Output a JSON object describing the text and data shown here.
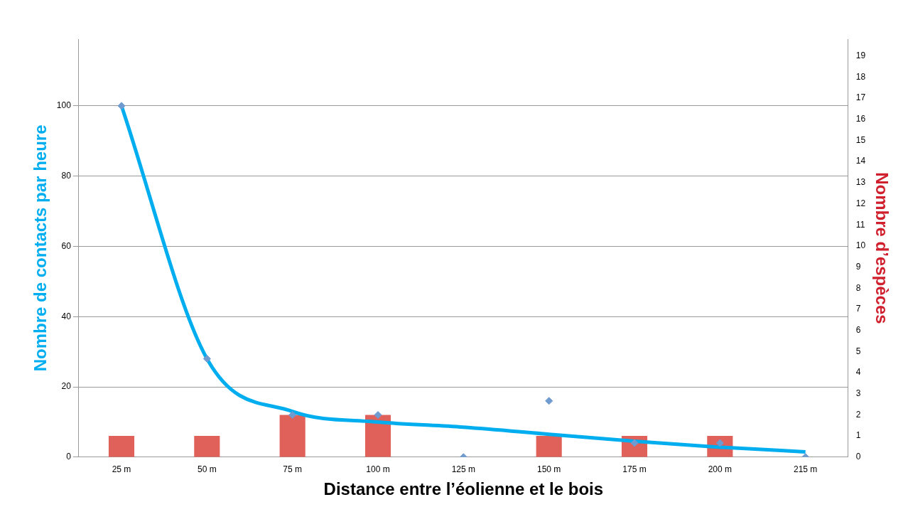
{
  "chart_data": {
    "type": "bar",
    "xlabel": "Distance entre l’éolienne et le bois",
    "ylabel": "Nombre de contacts par heure",
    "y2label": "Nombre d’espèces",
    "categories": [
      "25 m",
      "50 m",
      "75 m",
      "100 m",
      "125 m",
      "150 m",
      "175 m",
      "200 m",
      "215 m"
    ],
    "series": [
      {
        "axis": "y2",
        "color": "#e0605a",
        "values": [
          1,
          1,
          2,
          2,
          0,
          1,
          1,
          1,
          0
        ]
      },
      {
        "type": "scatter",
        "color": "#6f9bd1",
        "marker": "diamond",
        "values": [
          100,
          28,
          12,
          12,
          0,
          16,
          4,
          4,
          0
        ]
      },
      {
        "type": "line",
        "color": "#00aeef",
        "values": [
          100,
          28,
          13,
          10,
          8.5,
          6.5,
          4.5,
          2.8,
          1.5
        ]
      }
    ],
    "ylim": [
      0,
      119
    ],
    "yticks": [
      0,
      20,
      40,
      60,
      80,
      100
    ],
    "y2lim": [
      0,
      19.8
    ],
    "y2ticks": [
      0,
      1,
      2,
      3,
      4,
      5,
      6,
      7,
      8,
      9,
      10,
      11,
      12,
      13,
      14,
      15,
      16,
      17,
      18,
      19
    ],
    "grid": "y",
    "legend": false
  }
}
